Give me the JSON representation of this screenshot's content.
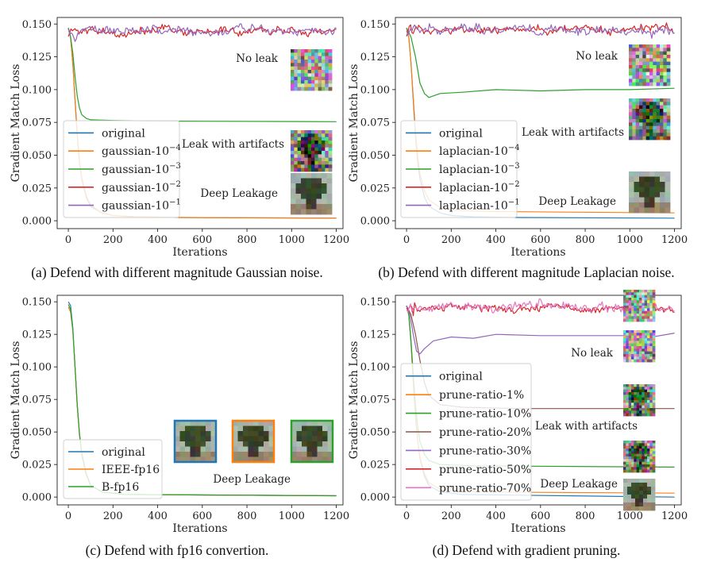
{
  "figure": {
    "captions": [
      "(a) Defend with different magnitude Gaussian noise.",
      "(b) Defend with different magnitude Laplacian noise.",
      "(c) Defend with fp16 convertion.",
      "(d) Defend with gradient pruning."
    ]
  },
  "colors": {
    "blue": "#1f77b4",
    "orange": "#ff7f0e",
    "green": "#2ca02c",
    "red": "#d62728",
    "purple": "#9467bd",
    "brown": "#8c564b",
    "pink": "#e377c2"
  },
  "chart_data": [
    {
      "type": "line",
      "xlabel": "Iterations",
      "ylabel": "Gradient Match Loss",
      "xlim": [
        -50,
        1230
      ],
      "ylim": [
        -0.006,
        0.155
      ],
      "xticks": [
        0,
        200,
        400,
        600,
        800,
        1000,
        1200
      ],
      "xtick_labels": [
        "0",
        "200",
        "400",
        "600",
        "800",
        "1000",
        "1200"
      ],
      "yticks": [
        0.0,
        0.025,
        0.05,
        0.075,
        0.1,
        0.125,
        0.15
      ],
      "ytick_labels": [
        "0.000",
        "0.025",
        "0.050",
        "0.075",
        "0.100",
        "0.125",
        "0.150"
      ],
      "grid": false,
      "legend_position": "lower-left",
      "legend_base": "gaussian-10",
      "series": [
        {
          "name": "original",
          "color": "blue",
          "noisy": false,
          "final": 0.002,
          "pts": [
            [
              0,
              0.147
            ],
            [
              10,
              0.14
            ],
            [
              20,
              0.12
            ],
            [
              30,
              0.092
            ],
            [
              40,
              0.065
            ],
            [
              50,
              0.045
            ],
            [
              60,
              0.032
            ],
            [
              80,
              0.018
            ],
            [
              100,
              0.011
            ],
            [
              150,
              0.006
            ],
            [
              200,
              0.004
            ],
            [
              300,
              0.003
            ],
            [
              500,
              0.0025
            ],
            [
              1200,
              0.002
            ]
          ]
        },
        {
          "name": "gaussian-10",
          "exp": "−4",
          "color": "orange",
          "noisy": false,
          "final": 0.002,
          "pts": [
            [
              0,
              0.147
            ],
            [
              10,
              0.14
            ],
            [
              20,
              0.12
            ],
            [
              30,
              0.093
            ],
            [
              40,
              0.066
            ],
            [
              50,
              0.046
            ],
            [
              60,
              0.033
            ],
            [
              80,
              0.019
            ],
            [
              100,
              0.012
            ],
            [
              150,
              0.006
            ],
            [
              200,
              0.004
            ],
            [
              300,
              0.003
            ],
            [
              500,
              0.0025
            ],
            [
              1200,
              0.002
            ]
          ]
        },
        {
          "name": "gaussian-10",
          "exp": "−3",
          "color": "green",
          "noisy": false,
          "final": 0.075,
          "pts": [
            [
              0,
              0.147
            ],
            [
              10,
              0.14
            ],
            [
              20,
              0.128
            ],
            [
              30,
              0.11
            ],
            [
              40,
              0.095
            ],
            [
              50,
              0.086
            ],
            [
              60,
              0.081
            ],
            [
              80,
              0.078
            ],
            [
              100,
              0.077
            ],
            [
              200,
              0.0765
            ],
            [
              400,
              0.076
            ],
            [
              1200,
              0.0755
            ]
          ]
        },
        {
          "name": "gaussian-10",
          "exp": "−2",
          "color": "red",
          "noisy": true,
          "level": 0.1445,
          "amp": 0.003,
          "final": 0.146
        },
        {
          "name": "gaussian-10",
          "exp": "−1",
          "color": "purple",
          "noisy": true,
          "level": 0.145,
          "amp": 0.0035,
          "final": 0.147
        }
      ],
      "annotations": [
        "No leak",
        "Leak with artifacts",
        "Deep Leakage"
      ]
    },
    {
      "type": "line",
      "xlabel": "Iterations",
      "ylabel": "Gradient Match Loss",
      "xlim": [
        -50,
        1230
      ],
      "ylim": [
        -0.006,
        0.155
      ],
      "xticks": [
        0,
        200,
        400,
        600,
        800,
        1000,
        1200
      ],
      "xtick_labels": [
        "0",
        "200",
        "400",
        "600",
        "800",
        "1000",
        "1200"
      ],
      "yticks": [
        0.0,
        0.025,
        0.05,
        0.075,
        0.1,
        0.125,
        0.15
      ],
      "ytick_labels": [
        "0.000",
        "0.025",
        "0.050",
        "0.075",
        "0.100",
        "0.125",
        "0.150"
      ],
      "grid": false,
      "legend_position": "lower-left",
      "legend_base": "laplacian-10",
      "series": [
        {
          "name": "original",
          "color": "blue",
          "noisy": false,
          "final": 0.002,
          "pts": [
            [
              0,
              0.147
            ],
            [
              10,
              0.14
            ],
            [
              20,
              0.12
            ],
            [
              30,
              0.092
            ],
            [
              40,
              0.065
            ],
            [
              50,
              0.045
            ],
            [
              60,
              0.032
            ],
            [
              80,
              0.018
            ],
            [
              100,
              0.011
            ],
            [
              150,
              0.006
            ],
            [
              200,
              0.004
            ],
            [
              300,
              0.003
            ],
            [
              500,
              0.0025
            ],
            [
              1200,
              0.002
            ]
          ]
        },
        {
          "name": "laplacian-10",
          "exp": "−4",
          "color": "orange",
          "noisy": false,
          "final": 0.006,
          "pts": [
            [
              0,
              0.147
            ],
            [
              10,
              0.14
            ],
            [
              20,
              0.12
            ],
            [
              30,
              0.094
            ],
            [
              40,
              0.068
            ],
            [
              50,
              0.049
            ],
            [
              60,
              0.036
            ],
            [
              80,
              0.023
            ],
            [
              100,
              0.016
            ],
            [
              150,
              0.01
            ],
            [
              200,
              0.008
            ],
            [
              400,
              0.007
            ],
            [
              1200,
              0.006
            ]
          ]
        },
        {
          "name": "laplacian-10",
          "exp": "−3",
          "color": "green",
          "noisy": false,
          "final": 0.101,
          "pts": [
            [
              0,
              0.147
            ],
            [
              20,
              0.14
            ],
            [
              40,
              0.125
            ],
            [
              60,
              0.105
            ],
            [
              80,
              0.097
            ],
            [
              100,
              0.094
            ],
            [
              150,
              0.097
            ],
            [
              250,
              0.098
            ],
            [
              400,
              0.1
            ],
            [
              600,
              0.099
            ],
            [
              800,
              0.1
            ],
            [
              1000,
              0.1
            ],
            [
              1200,
              0.101
            ]
          ]
        },
        {
          "name": "laplacian-10",
          "exp": "−2",
          "color": "red",
          "noisy": true,
          "level": 0.1455,
          "amp": 0.003,
          "final": 0.143
        },
        {
          "name": "laplacian-10",
          "exp": "−1",
          "color": "purple",
          "noisy": true,
          "level": 0.145,
          "amp": 0.0035,
          "final": 0.143
        }
      ],
      "annotations": [
        "No leak",
        "Leak with artifacts",
        "Deep Leakage"
      ]
    },
    {
      "type": "line",
      "xlabel": "Iterations",
      "ylabel": "Gradient Match Loss",
      "xlim": [
        -50,
        1230
      ],
      "ylim": [
        -0.006,
        0.155
      ],
      "xticks": [
        0,
        200,
        400,
        600,
        800,
        1000,
        1200
      ],
      "xtick_labels": [
        "0",
        "200",
        "400",
        "600",
        "800",
        "1000",
        "1200"
      ],
      "yticks": [
        0.0,
        0.025,
        0.05,
        0.075,
        0.1,
        0.125,
        0.15
      ],
      "ytick_labels": [
        "0.000",
        "0.025",
        "0.050",
        "0.075",
        "0.100",
        "0.125",
        "0.150"
      ],
      "grid": false,
      "legend_position": "lower-left",
      "series": [
        {
          "name": "original",
          "color": "blue",
          "noisy": false,
          "final": 0.001,
          "pts": [
            [
              0,
              0.15
            ],
            [
              10,
              0.147
            ],
            [
              20,
              0.13
            ],
            [
              30,
              0.1
            ],
            [
              40,
              0.07
            ],
            [
              50,
              0.048
            ],
            [
              60,
              0.033
            ],
            [
              80,
              0.017
            ],
            [
              100,
              0.009
            ],
            [
              150,
              0.004
            ],
            [
              250,
              0.002
            ],
            [
              1200,
              0.001
            ]
          ]
        },
        {
          "name": "IEEE-fp16",
          "color": "orange",
          "noisy": false,
          "final": 0.001,
          "pts": [
            [
              0,
              0.146
            ],
            [
              10,
              0.142
            ],
            [
              20,
              0.128
            ],
            [
              30,
              0.1
            ],
            [
              40,
              0.07
            ],
            [
              50,
              0.048
            ],
            [
              60,
              0.033
            ],
            [
              80,
              0.017
            ],
            [
              100,
              0.009
            ],
            [
              150,
              0.004
            ],
            [
              250,
              0.002
            ],
            [
              1200,
              0.001
            ]
          ]
        },
        {
          "name": "B-fp16",
          "color": "green",
          "noisy": false,
          "final": 0.001,
          "pts": [
            [
              0,
              0.148
            ],
            [
              10,
              0.144
            ],
            [
              20,
              0.129
            ],
            [
              30,
              0.1
            ],
            [
              40,
              0.071
            ],
            [
              50,
              0.049
            ],
            [
              60,
              0.034
            ],
            [
              80,
              0.018
            ],
            [
              100,
              0.009
            ],
            [
              150,
              0.004
            ],
            [
              250,
              0.002
            ],
            [
              1200,
              0.001
            ]
          ]
        }
      ],
      "annotations": [
        "Deep Leakage"
      ]
    },
    {
      "type": "line",
      "xlabel": "Iterations",
      "ylabel": "Gradient Match Loss",
      "xlim": [
        -50,
        1230
      ],
      "ylim": [
        -0.006,
        0.155
      ],
      "xticks": [
        0,
        200,
        400,
        600,
        800,
        1000,
        1200
      ],
      "xtick_labels": [
        "0",
        "200",
        "400",
        "600",
        "800",
        "1000",
        "1200"
      ],
      "yticks": [
        0.0,
        0.025,
        0.05,
        0.075,
        0.1,
        0.125,
        0.15
      ],
      "ytick_labels": [
        "0.000",
        "0.025",
        "0.050",
        "0.075",
        "0.100",
        "0.125",
        "0.150"
      ],
      "grid": false,
      "legend_position": "lower-left",
      "series": [
        {
          "name": "original",
          "color": "blue",
          "noisy": false,
          "final": 0.0,
          "pts": [
            [
              0,
              0.147
            ],
            [
              10,
              0.14
            ],
            [
              20,
              0.118
            ],
            [
              30,
              0.088
            ],
            [
              40,
              0.062
            ],
            [
              50,
              0.043
            ],
            [
              60,
              0.03
            ],
            [
              80,
              0.016
            ],
            [
              100,
              0.009
            ],
            [
              150,
              0.004
            ],
            [
              250,
              0.002
            ],
            [
              1200,
              0.0
            ]
          ]
        },
        {
          "name": "prune-ratio-1%",
          "color": "orange",
          "noisy": false,
          "final": 0.003,
          "pts": [
            [
              0,
              0.147
            ],
            [
              10,
              0.14
            ],
            [
              20,
              0.119
            ],
            [
              30,
              0.089
            ],
            [
              40,
              0.063
            ],
            [
              50,
              0.044
            ],
            [
              60,
              0.031
            ],
            [
              80,
              0.018
            ],
            [
              100,
              0.011
            ],
            [
              150,
              0.006
            ],
            [
              250,
              0.004
            ],
            [
              1200,
              0.003
            ]
          ]
        },
        {
          "name": "prune-ratio-10%",
          "color": "green",
          "noisy": false,
          "final": 0.023,
          "pts": [
            [
              0,
              0.147
            ],
            [
              10,
              0.14
            ],
            [
              20,
              0.12
            ],
            [
              30,
              0.094
            ],
            [
              40,
              0.07
            ],
            [
              50,
              0.054
            ],
            [
              60,
              0.043
            ],
            [
              80,
              0.033
            ],
            [
              100,
              0.028
            ],
            [
              150,
              0.025
            ],
            [
              300,
              0.024
            ],
            [
              1200,
              0.023
            ]
          ]
        },
        {
          "name": "prune-ratio-20%",
          "color": "brown",
          "noisy": false,
          "final": 0.068,
          "pts": [
            [
              0,
              0.147
            ],
            [
              20,
              0.14
            ],
            [
              40,
              0.125
            ],
            [
              60,
              0.105
            ],
            [
              80,
              0.088
            ],
            [
              100,
              0.078
            ],
            [
              150,
              0.071
            ],
            [
              250,
              0.069
            ],
            [
              500,
              0.068
            ],
            [
              1200,
              0.068
            ]
          ]
        },
        {
          "name": "prune-ratio-30%",
          "color": "purple",
          "noisy": false,
          "final": 0.126,
          "pts": [
            [
              0,
              0.147
            ],
            [
              15,
              0.14
            ],
            [
              30,
              0.125
            ],
            [
              45,
              0.112
            ],
            [
              60,
              0.11
            ],
            [
              80,
              0.114
            ],
            [
              120,
              0.12
            ],
            [
              200,
              0.123
            ],
            [
              300,
              0.122
            ],
            [
              400,
              0.125
            ],
            [
              600,
              0.124
            ],
            [
              800,
              0.124
            ],
            [
              1000,
              0.124
            ],
            [
              1100,
              0.123
            ],
            [
              1200,
              0.126
            ]
          ]
        },
        {
          "name": "prune-ratio-50%",
          "color": "red",
          "noisy": true,
          "level": 0.145,
          "amp": 0.003,
          "final": 0.142
        },
        {
          "name": "prune-ratio-70%",
          "color": "pink",
          "noisy": true,
          "level": 0.146,
          "amp": 0.0035,
          "final": 0.143
        }
      ],
      "annotations": [
        "No leak",
        "Leak with artifacts",
        "Deep Leakage"
      ]
    }
  ]
}
